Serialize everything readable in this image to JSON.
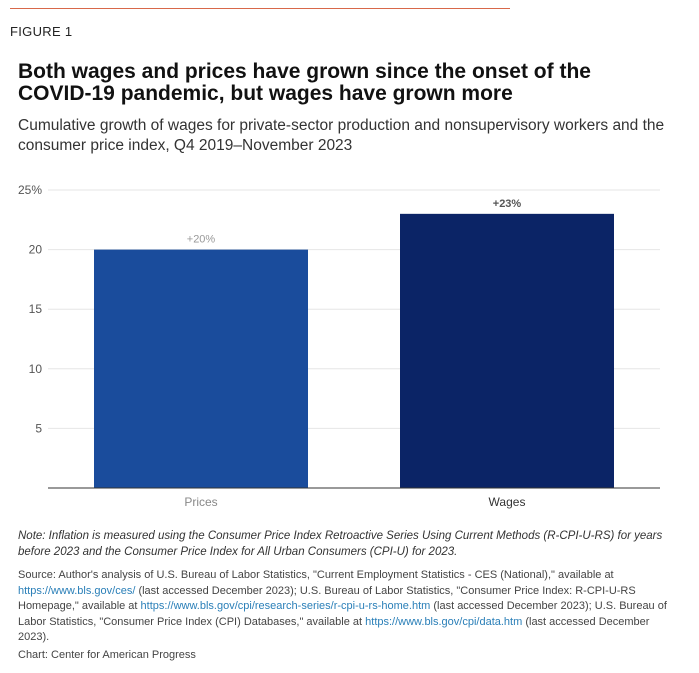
{
  "header": {
    "figure_label": "FIGURE 1",
    "title": "Both wages and prices have grown since the onset of the COVID-19 pandemic, but wages have grown more",
    "subtitle": "Cumulative growth of wages for private-sector production and nonsupervisory workers and the consumer price index, Q4 2019–November 2023"
  },
  "colors": {
    "rule": "#d8684a",
    "prices_bar": "#1a4c9c",
    "wages_bar": "#0b2466",
    "grid": "#e6e6e6",
    "axis": "#333333",
    "tick_text": "#555555",
    "prices_label": "#999999",
    "wages_label": "#555555"
  },
  "chart_data": {
    "type": "bar",
    "categories": [
      "Prices",
      "Wages"
    ],
    "values": [
      20,
      23
    ],
    "data_labels": [
      "+20%",
      "+23%"
    ],
    "yticks": [
      {
        "value": 5,
        "label": "5"
      },
      {
        "value": 10,
        "label": "10"
      },
      {
        "value": 15,
        "label": "15"
      },
      {
        "value": 20,
        "label": "20"
      },
      {
        "value": 25,
        "label": "25%"
      }
    ],
    "ylim": [
      0,
      25
    ],
    "grid": true
  },
  "footer": {
    "note": "Note: Inflation is measured using the Consumer Price Index Retroactive Series Using Current Methods (R-CPI-U-RS) for years before 2023 and the Consumer Price Index for All Urban Consumers (CPI-U) for 2023.",
    "source_parts": [
      {
        "text": "Source: Author's analysis of U.S. Bureau of Labor Statistics, \"Current Employment Statistics - CES (National),\" available at ",
        "link": false
      },
      {
        "text": "https://www.bls.gov/ces/",
        "link": true
      },
      {
        "text": " (last accessed December 2023); U.S. Bureau of Labor Statistics, \"Consumer Price Index: R-CPI-U-RS Homepage,\" available at ",
        "link": false
      },
      {
        "text": "https://www.bls.gov/cpi/research-series/r-cpi-u-rs-home.htm",
        "link": true
      },
      {
        "text": " (last accessed December 2023); U.S. Bureau of Labor Statistics, \"Consumer Price Index (CPI) Databases,\" available at ",
        "link": false
      },
      {
        "text": "https://www.bls.gov/cpi/data.htm",
        "link": true
      },
      {
        "text": " (last accessed December 2023).",
        "link": false
      }
    ],
    "credit": "Chart: Center for American Progress"
  }
}
